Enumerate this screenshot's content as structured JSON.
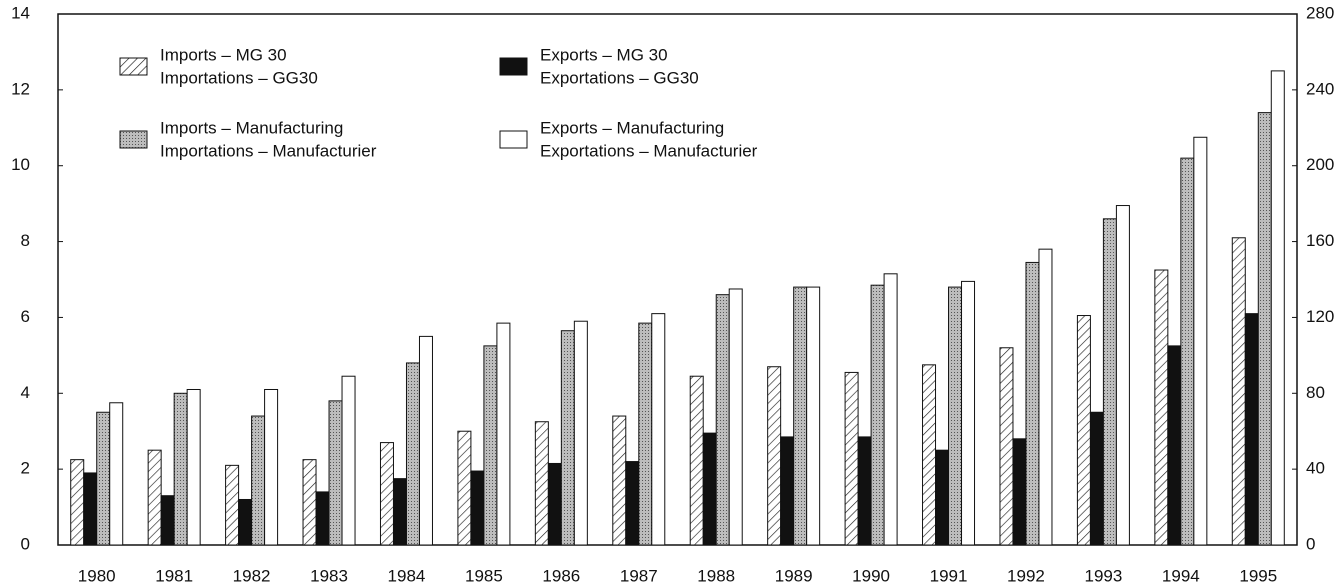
{
  "chart_data": {
    "type": "bar",
    "categories": [
      "1980",
      "1981",
      "1982",
      "1983",
      "1984",
      "1985",
      "1986",
      "1987",
      "1988",
      "1989",
      "1990",
      "1991",
      "1992",
      "1993",
      "1994",
      "1995"
    ],
    "ylim": [
      0,
      14
    ],
    "yticks": [
      0,
      2,
      4,
      6,
      8,
      10,
      12,
      14
    ],
    "y2lim": [
      0,
      280
    ],
    "y2ticks": [
      0,
      40,
      80,
      120,
      160,
      200,
      240,
      280
    ],
    "grid": false,
    "series": [
      {
        "name": "Imports – MG 30",
        "name_fr": "Importations – GG30",
        "color": "#ffffff",
        "pattern": "hatch",
        "values": [
          2.25,
          2.5,
          2.1,
          2.25,
          2.7,
          3.0,
          3.25,
          3.4,
          4.45,
          4.7,
          4.55,
          4.75,
          5.2,
          6.05,
          7.25,
          8.1
        ]
      },
      {
        "name": "Exports – MG 30",
        "name_fr": "Exportations – GG30",
        "color": "#111111",
        "pattern": "solid",
        "values": [
          1.9,
          1.3,
          1.2,
          1.4,
          1.75,
          1.95,
          2.15,
          2.2,
          2.95,
          2.85,
          2.85,
          2.5,
          2.8,
          3.5,
          5.25,
          6.1
        ]
      },
      {
        "name": "Imports – Manufacturing",
        "name_fr": "Importations – Manufacturier",
        "color": "#a8a8a8",
        "pattern": "stipple",
        "axis": "y2",
        "values": [
          70,
          80,
          68,
          76,
          96,
          105,
          113,
          117,
          132,
          136,
          137,
          136,
          149,
          172,
          204,
          228
        ]
      },
      {
        "name": "Exports – Manufacturing",
        "name_fr": "Exportations – Manufacturier",
        "color": "#ffffff",
        "pattern": "solid",
        "axis": "y2",
        "values": [
          75,
          82,
          82,
          89,
          110,
          117,
          118,
          122,
          135,
          136,
          143,
          139,
          156,
          179,
          215,
          250
        ]
      }
    ]
  }
}
